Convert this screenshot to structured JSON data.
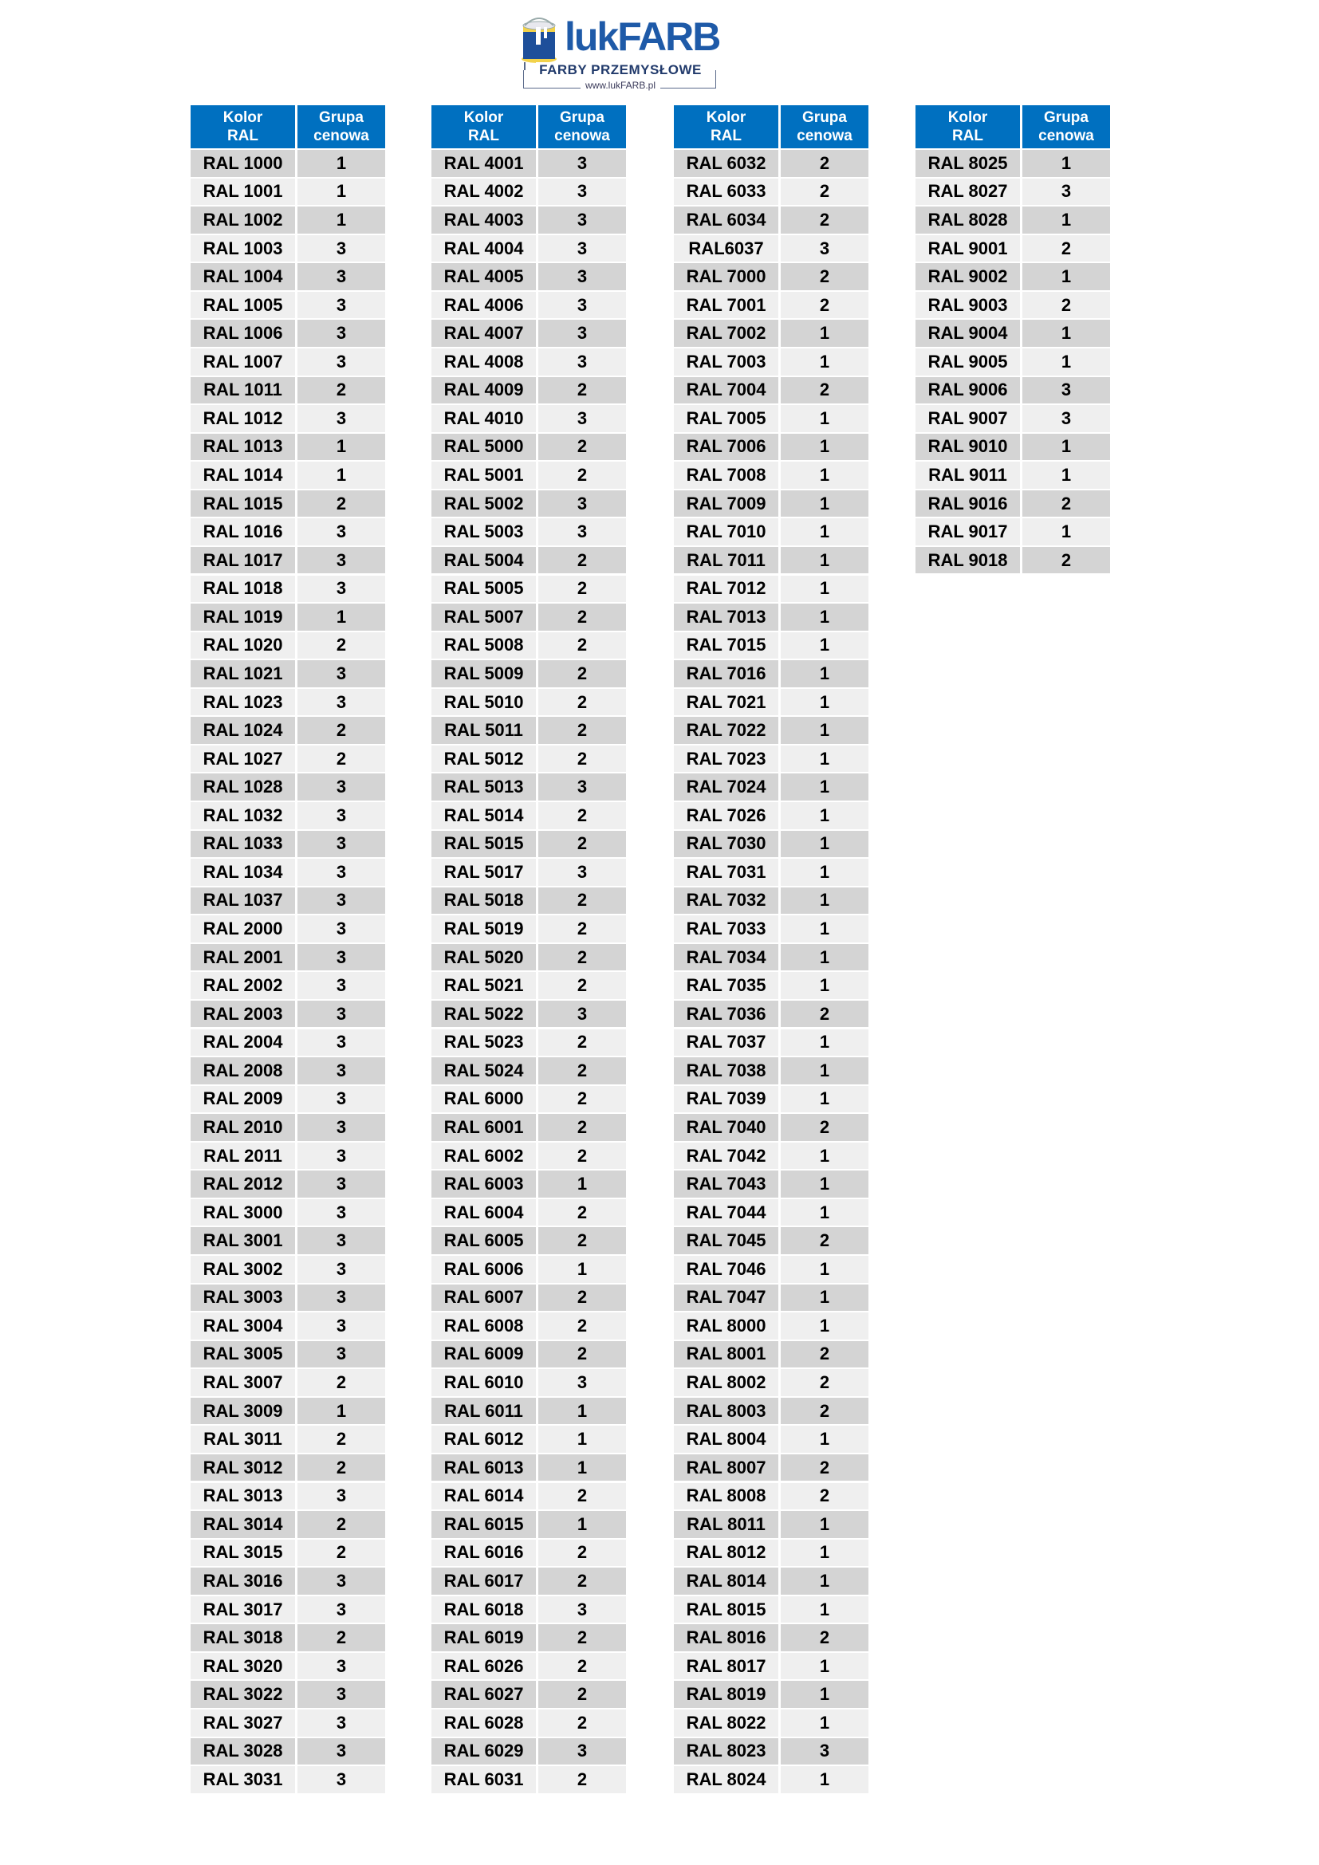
{
  "logo": {
    "brand": "lukFARB",
    "tagline": "FARBY PRZEMYSŁOWE",
    "url": "www.lukFARB.pl"
  },
  "colors": {
    "header_blue": "#0070c0",
    "row_dark": "#d4d4d4",
    "row_light": "#efefef",
    "brand_blue": "#1e5aa8"
  },
  "headers": {
    "kolor": "Kolor\nRAL",
    "grupa": "Grupa\ncenowa"
  },
  "tables": [
    {
      "rows": [
        [
          "RAL 1000",
          "1"
        ],
        [
          "RAL 1001",
          "1"
        ],
        [
          "RAL 1002",
          "1"
        ],
        [
          "RAL 1003",
          "3"
        ],
        [
          "RAL 1004",
          "3"
        ],
        [
          "RAL 1005",
          "3"
        ],
        [
          "RAL 1006",
          "3"
        ],
        [
          "RAL 1007",
          "3"
        ],
        [
          "RAL 1011",
          "2"
        ],
        [
          "RAL 1012",
          "3"
        ],
        [
          "RAL 1013",
          "1"
        ],
        [
          "RAL 1014",
          "1"
        ],
        [
          "RAL 1015",
          "2"
        ],
        [
          "RAL 1016",
          "3"
        ],
        [
          "RAL 1017",
          "3"
        ],
        [
          "RAL 1018",
          "3"
        ],
        [
          "RAL 1019",
          "1"
        ],
        [
          "RAL 1020",
          "2"
        ],
        [
          "RAL 1021",
          "3"
        ],
        [
          "RAL 1023",
          "3"
        ],
        [
          "RAL 1024",
          "2"
        ],
        [
          "RAL 1027",
          "2"
        ],
        [
          "RAL 1028",
          "3"
        ],
        [
          "RAL 1032",
          "3"
        ],
        [
          "RAL 1033",
          "3"
        ],
        [
          "RAL 1034",
          "3"
        ],
        [
          "RAL 1037",
          "3"
        ],
        [
          "RAL 2000",
          "3"
        ],
        [
          "RAL 2001",
          "3"
        ],
        [
          "RAL 2002",
          "3"
        ],
        [
          "RAL 2003",
          "3"
        ],
        [
          "RAL 2004",
          "3"
        ],
        [
          "RAL 2008",
          "3"
        ],
        [
          "RAL 2009",
          "3"
        ],
        [
          "RAL 2010",
          "3"
        ],
        [
          "RAL 2011",
          "3"
        ],
        [
          "RAL 2012",
          "3"
        ],
        [
          "RAL 3000",
          "3"
        ],
        [
          "RAL 3001",
          "3"
        ],
        [
          "RAL 3002",
          "3"
        ],
        [
          "RAL 3003",
          "3"
        ],
        [
          "RAL 3004",
          "3"
        ],
        [
          "RAL 3005",
          "3"
        ],
        [
          "RAL 3007",
          "2"
        ],
        [
          "RAL 3009",
          "1"
        ],
        [
          "RAL 3011",
          "2"
        ],
        [
          "RAL 3012",
          "2"
        ],
        [
          "RAL 3013",
          "3"
        ],
        [
          "RAL 3014",
          "2"
        ],
        [
          "RAL 3015",
          "2"
        ],
        [
          "RAL 3016",
          "3"
        ],
        [
          "RAL 3017",
          "3"
        ],
        [
          "RAL 3018",
          "2"
        ],
        [
          "RAL 3020",
          "3"
        ],
        [
          "RAL 3022",
          "3"
        ],
        [
          "RAL 3027",
          "3"
        ],
        [
          "RAL 3028",
          "3"
        ],
        [
          "RAL 3031",
          "3"
        ]
      ]
    },
    {
      "rows": [
        [
          "RAL 4001",
          "3"
        ],
        [
          "RAL 4002",
          "3"
        ],
        [
          "RAL 4003",
          "3"
        ],
        [
          "RAL 4004",
          "3"
        ],
        [
          "RAL 4005",
          "3"
        ],
        [
          "RAL 4006",
          "3"
        ],
        [
          "RAL 4007",
          "3"
        ],
        [
          "RAL 4008",
          "3"
        ],
        [
          "RAL 4009",
          "2"
        ],
        [
          "RAL 4010",
          "3"
        ],
        [
          "RAL 5000",
          "2"
        ],
        [
          "RAL 5001",
          "2"
        ],
        [
          "RAL 5002",
          "3"
        ],
        [
          "RAL 5003",
          "3"
        ],
        [
          "RAL 5004",
          "2"
        ],
        [
          "RAL 5005",
          "2"
        ],
        [
          "RAL 5007",
          "2"
        ],
        [
          "RAL 5008",
          "2"
        ],
        [
          "RAL 5009",
          "2"
        ],
        [
          "RAL 5010",
          "2"
        ],
        [
          "RAL 5011",
          "2"
        ],
        [
          "RAL 5012",
          "2"
        ],
        [
          "RAL 5013",
          "3"
        ],
        [
          "RAL 5014",
          "2"
        ],
        [
          "RAL 5015",
          "2"
        ],
        [
          "RAL 5017",
          "3"
        ],
        [
          "RAL 5018",
          "2"
        ],
        [
          "RAL 5019",
          "2"
        ],
        [
          "RAL 5020",
          "2"
        ],
        [
          "RAL 5021",
          "2"
        ],
        [
          "RAL 5022",
          "3"
        ],
        [
          "RAL 5023",
          "2"
        ],
        [
          "RAL 5024",
          "2"
        ],
        [
          "RAL 6000",
          "2"
        ],
        [
          "RAL 6001",
          "2"
        ],
        [
          "RAL 6002",
          "2"
        ],
        [
          "RAL 6003",
          "1"
        ],
        [
          "RAL 6004",
          "2"
        ],
        [
          "RAL 6005",
          "2"
        ],
        [
          "RAL 6006",
          "1"
        ],
        [
          "RAL 6007",
          "2"
        ],
        [
          "RAL 6008",
          "2"
        ],
        [
          "RAL 6009",
          "2"
        ],
        [
          "RAL 6010",
          "3"
        ],
        [
          "RAL 6011",
          "1"
        ],
        [
          "RAL 6012",
          "1"
        ],
        [
          "RAL 6013",
          "1"
        ],
        [
          "RAL 6014",
          "2"
        ],
        [
          "RAL 6015",
          "1"
        ],
        [
          "RAL 6016",
          "2"
        ],
        [
          "RAL 6017",
          "2"
        ],
        [
          "RAL 6018",
          "3"
        ],
        [
          "RAL 6019",
          "2"
        ],
        [
          "RAL 6026",
          "2"
        ],
        [
          "RAL 6027",
          "2"
        ],
        [
          "RAL 6028",
          "2"
        ],
        [
          "RAL 6029",
          "3"
        ],
        [
          "RAL 6031",
          "2"
        ]
      ]
    },
    {
      "rows": [
        [
          "RAL 6032",
          "2"
        ],
        [
          "RAL 6033",
          "2"
        ],
        [
          "RAL 6034",
          "2"
        ],
        [
          "RAL6037",
          "3"
        ],
        [
          "RAL 7000",
          "2"
        ],
        [
          "RAL 7001",
          "2"
        ],
        [
          "RAL 7002",
          "1"
        ],
        [
          "RAL 7003",
          "1"
        ],
        [
          "RAL 7004",
          "2"
        ],
        [
          "RAL 7005",
          "1"
        ],
        [
          "RAL 7006",
          "1"
        ],
        [
          "RAL 7008",
          "1"
        ],
        [
          "RAL 7009",
          "1"
        ],
        [
          "RAL 7010",
          "1"
        ],
        [
          "RAL 7011",
          "1"
        ],
        [
          "RAL 7012",
          "1"
        ],
        [
          "RAL 7013",
          "1"
        ],
        [
          "RAL 7015",
          "1"
        ],
        [
          "RAL 7016",
          "1"
        ],
        [
          "RAL 7021",
          "1"
        ],
        [
          "RAL 7022",
          "1"
        ],
        [
          "RAL 7023",
          "1"
        ],
        [
          "RAL 7024",
          "1"
        ],
        [
          "RAL 7026",
          "1"
        ],
        [
          "RAL 7030",
          "1"
        ],
        [
          "RAL 7031",
          "1"
        ],
        [
          "RAL 7032",
          "1"
        ],
        [
          "RAL 7033",
          "1"
        ],
        [
          "RAL 7034",
          "1"
        ],
        [
          "RAL 7035",
          "1"
        ],
        [
          "RAL 7036",
          "2"
        ],
        [
          "RAL 7037",
          "1"
        ],
        [
          "RAL 7038",
          "1"
        ],
        [
          "RAL 7039",
          "1"
        ],
        [
          "RAL 7040",
          "2"
        ],
        [
          "RAL 7042",
          "1"
        ],
        [
          "RAL 7043",
          "1"
        ],
        [
          "RAL 7044",
          "1"
        ],
        [
          "RAL 7045",
          "2"
        ],
        [
          "RAL 7046",
          "1"
        ],
        [
          "RAL 7047",
          "1"
        ],
        [
          "RAL 8000",
          "1"
        ],
        [
          "RAL 8001",
          "2"
        ],
        [
          "RAL 8002",
          "2"
        ],
        [
          "RAL 8003",
          "2"
        ],
        [
          "RAL 8004",
          "1"
        ],
        [
          "RAL 8007",
          "2"
        ],
        [
          "RAL 8008",
          "2"
        ],
        [
          "RAL 8011",
          "1"
        ],
        [
          "RAL 8012",
          "1"
        ],
        [
          "RAL 8014",
          "1"
        ],
        [
          "RAL 8015",
          "1"
        ],
        [
          "RAL 8016",
          "2"
        ],
        [
          "RAL 8017",
          "1"
        ],
        [
          "RAL 8019",
          "1"
        ],
        [
          "RAL 8022",
          "1"
        ],
        [
          "RAL 8023",
          "3"
        ],
        [
          "RAL 8024",
          "1"
        ]
      ]
    },
    {
      "rows": [
        [
          "RAL 8025",
          "1"
        ],
        [
          "RAL 8027",
          "3"
        ],
        [
          "RAL 8028",
          "1"
        ],
        [
          "RAL 9001",
          "2"
        ],
        [
          "RAL 9002",
          "1"
        ],
        [
          "RAL 9003",
          "2"
        ],
        [
          "RAL 9004",
          "1"
        ],
        [
          "RAL 9005",
          "1"
        ],
        [
          "RAL 9006",
          "3"
        ],
        [
          "RAL 9007",
          "3"
        ],
        [
          "RAL 9010",
          "1"
        ],
        [
          "RAL 9011",
          "1"
        ],
        [
          "RAL 9016",
          "2"
        ],
        [
          "RAL 9017",
          "1"
        ],
        [
          "RAL 9018",
          "2"
        ]
      ]
    }
  ]
}
